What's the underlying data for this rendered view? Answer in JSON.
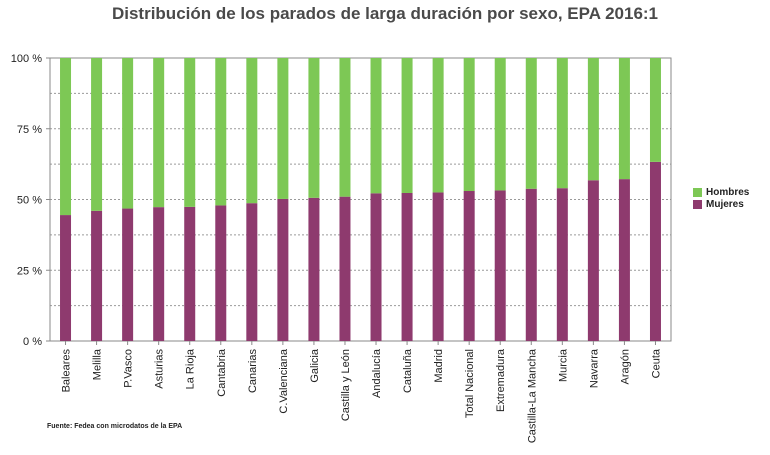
{
  "chart_data": {
    "type": "bar",
    "stacked": true,
    "title": "Distribución de los parados de larga duración por sexo, EPA 2016:1",
    "xlabel": "",
    "ylabel": "",
    "ylim": [
      0,
      100
    ],
    "yticks": [
      "0 %",
      "25 %",
      "50 %",
      "75 %",
      "100 %"
    ],
    "grid": true,
    "legend_position": "right",
    "categories": [
      "Baleares",
      "Melilla",
      "P.Vasco",
      "Asturias",
      "La Rioja",
      "Cantabria",
      "Canarias",
      "C.Valenciana",
      "Galicia",
      "Castilla y León",
      "Andalucía",
      "Cataluña",
      "Madrid",
      "Total Nacional",
      "Extremadura",
      "Castilla-La Mancha",
      "Murcia",
      "Navarra",
      "Aragón",
      "Ceuta"
    ],
    "series": [
      {
        "name": "Mujeres",
        "color": "#8e3a6e",
        "values": [
          44.5,
          46,
          46.8,
          47.3,
          47.4,
          47.9,
          48.7,
          50.2,
          50.6,
          51,
          52.2,
          52.3,
          52.5,
          53,
          53.2,
          53.8,
          54,
          56.8,
          57.2,
          63.3
        ]
      },
      {
        "name": "Hombres",
        "color": "#7dc855",
        "values": [
          55.5,
          54,
          53.2,
          52.7,
          52.6,
          52.1,
          51.3,
          49.8,
          49.4,
          49,
          47.8,
          47.7,
          47.5,
          47,
          46.8,
          46.2,
          46,
          43.2,
          42.8,
          36.7
        ]
      }
    ]
  },
  "legend": [
    {
      "label": "Hombres",
      "color": "#7dc855"
    },
    {
      "label": "Mujeres",
      "color": "#8e3a6e"
    }
  ],
  "source": "Fuente: Fedea con microdatos de la EPA"
}
